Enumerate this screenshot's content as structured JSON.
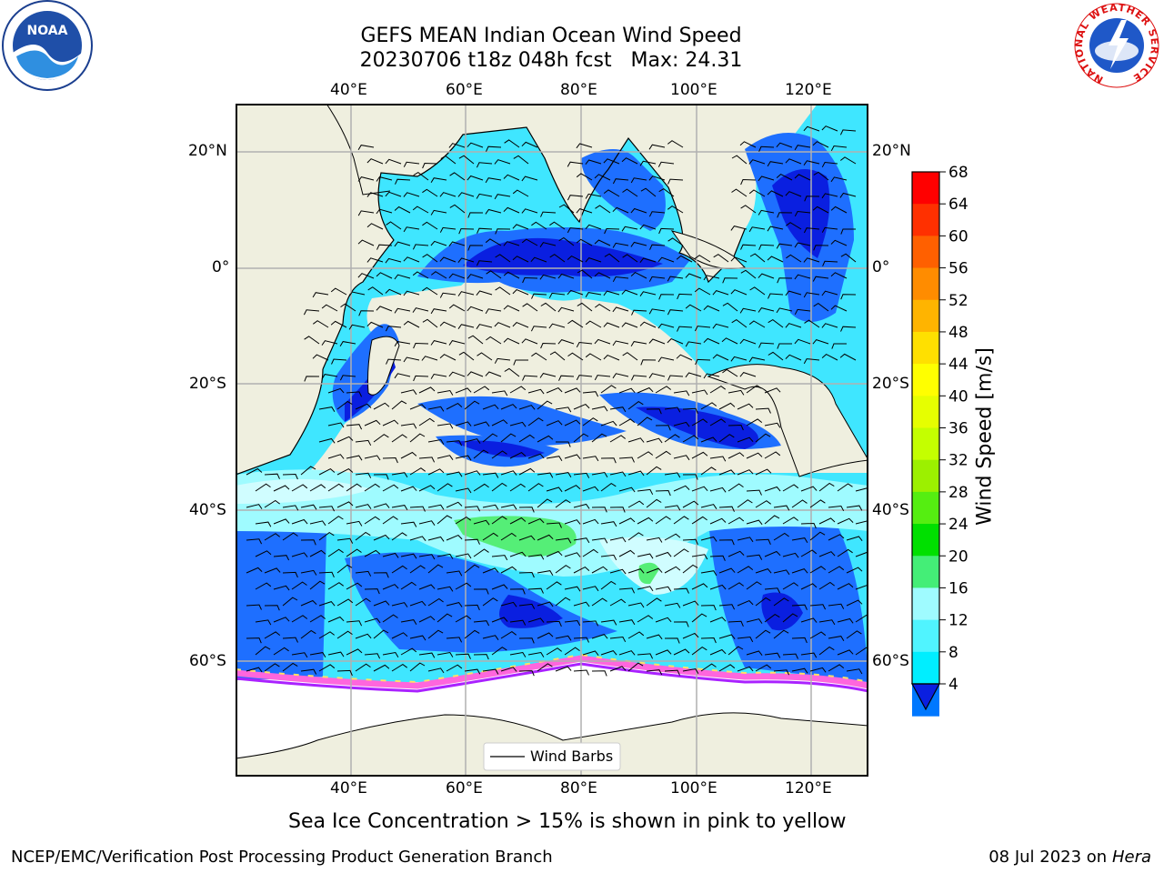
{
  "header": {
    "title_line1": "GEFS MEAN Indian Ocean Wind Speed",
    "title_line2": "20230706 t18z 048h fcst   Max: 24.31"
  },
  "logos": {
    "left": {
      "icon": "noaa-logo-icon",
      "text": "NOAA"
    },
    "right": {
      "icon": "nws-logo-icon",
      "ring_text": "NATIONAL WEATHER SERVICE"
    }
  },
  "map": {
    "lon_ticks_top": [
      "40°E",
      "60°E",
      "80°E",
      "100°E",
      "120°E"
    ],
    "lon_ticks_bottom": [
      "40°E",
      "60°E",
      "80°E",
      "100°E",
      "120°E"
    ],
    "lat_ticks_left": [
      "20°N",
      "0°",
      "20°S",
      "40°S",
      "60°S"
    ],
    "lat_ticks_right": [
      "20°N",
      "0°",
      "20°S",
      "40°S",
      "60°S"
    ],
    "legend_label": "Wind Barbs",
    "colors": {
      "land": "#efefdf",
      "ocean_base": "#3fe6ff",
      "ocean_calm": "#1e6fff",
      "ocean_very_calm": "#0a1fe0",
      "ocean_fresh": "#9ffbff",
      "ocean_strong": "#55ee77",
      "sea_ice": "#ff66dd",
      "antarctica": "#ffffff"
    }
  },
  "colorbar": {
    "label": "Wind Speed [m/s]",
    "ticks": [
      "68",
      "64",
      "60",
      "56",
      "52",
      "48",
      "44",
      "40",
      "36",
      "32",
      "28",
      "24",
      "20",
      "16",
      "12",
      "8",
      "4"
    ],
    "colors": [
      "#ff0000",
      "#ff3000",
      "#ff6000",
      "#ff8c00",
      "#ffb400",
      "#ffe000",
      "#ffff00",
      "#e6ff00",
      "#c4ff00",
      "#9cf000",
      "#55ee11",
      "#00e000",
      "#44ee77",
      "#9ffbff",
      "#50f4ff",
      "#00eeff",
      "#0078ff"
    ],
    "extend_color": "#0a1fe0"
  },
  "note": "Sea Ice Concentration > 15% is shown in pink to yellow",
  "footer": {
    "left": "NCEP/EMC/Verification Post Processing Product Generation Branch",
    "date": "08 Jul 2023 on ",
    "machine": "Hera"
  }
}
